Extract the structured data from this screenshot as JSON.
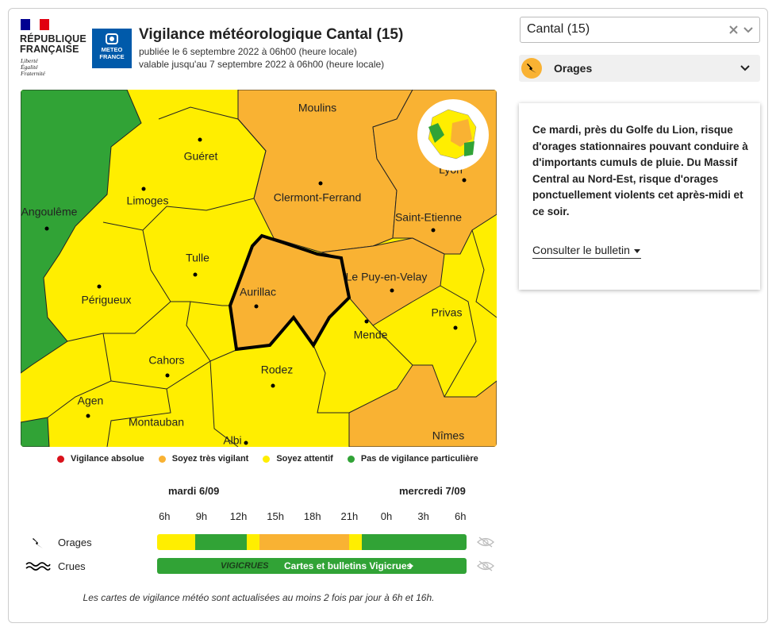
{
  "header": {
    "republic": [
      "RÉPUBLIQUE",
      "FRANÇAISE"
    ],
    "motto": [
      "Liberté",
      "Égalité",
      "Fraternité"
    ],
    "meteo_logo": [
      "METEO",
      "FRANCE"
    ],
    "title": "Vigilance météorologique Cantal (15)",
    "published": "publiée le 6 septembre 2022 à 06h00 (heure locale)",
    "valid": "valable jusqu'au 7 septembre 2022 à 06h00 (heure locale)"
  },
  "department_select": "Cantal (15)",
  "phenomenon": "Orages",
  "bulletin": {
    "text": "Ce mardi, près du Golfe du Lion, risque d'orages stationnaires pouvant conduire à d'importants cumuls de pluie. Du Massif Central au Nord-Est, risque d'orages ponctuellement violents cet après-midi et ce soir.",
    "link": "Consulter le bulletin"
  },
  "map": {
    "cities": [
      "Moulins",
      "Guéret",
      "Limoges",
      "Clermont-Ferrand",
      "Angoulême",
      "Lyon",
      "Saint-Etienne",
      "Tulle",
      "Le Puy-en-Velay",
      "Aurillac",
      "Périgueux",
      "Privas",
      "Mende",
      "Cahors",
      "Rodez",
      "Agen",
      "Montauban",
      "Nîmes",
      "Albi"
    ]
  },
  "legend": [
    {
      "label": "Vigilance absolue",
      "color": "#d9111b"
    },
    {
      "label": "Soyez très vigilant",
      "color": "#f9b233"
    },
    {
      "label": "Soyez attentif",
      "color": "#ffee00"
    },
    {
      "label": "Pas de vigilance particulière",
      "color": "#31a336"
    }
  ],
  "timeline": {
    "days": [
      "mardi 6/09",
      "mercredi 7/09"
    ],
    "xlim": [
      5.4,
      30.5
    ],
    "ticks": [
      {
        "value": 6,
        "label": "6h"
      },
      {
        "value": 9,
        "label": "9h"
      },
      {
        "value": 12,
        "label": "12h"
      },
      {
        "value": 15,
        "label": "15h"
      },
      {
        "value": 18,
        "label": "18h"
      },
      {
        "value": 21,
        "label": "21h"
      },
      {
        "value": 24,
        "label": "0h"
      },
      {
        "value": 27,
        "label": "3h"
      },
      {
        "value": 30,
        "label": "6h"
      }
    ],
    "rows": [
      {
        "label": "Orages",
        "segments": [
          {
            "start": 5.4,
            "end": 8.5,
            "color": "#ffee00"
          },
          {
            "start": 8.5,
            "end": 12.7,
            "color": "#31a336"
          },
          {
            "start": 12.7,
            "end": 13.7,
            "color": "#ffee00"
          },
          {
            "start": 13.7,
            "end": 21,
            "color": "#f9b233"
          },
          {
            "start": 21,
            "end": 22,
            "color": "#ffee00"
          },
          {
            "start": 22,
            "end": 30.5,
            "color": "#31a336"
          }
        ]
      },
      {
        "label": "Crues",
        "segments": [
          {
            "start": 5.4,
            "end": 30.5,
            "color": "#31a336"
          }
        ],
        "logo": "VIGICRUES",
        "link": "Cartes et bulletins Vigicrues"
      }
    ]
  },
  "footnote": "Les cartes de vigilance météo sont actualisées au moins 2 fois par jour à 6h et 16h."
}
